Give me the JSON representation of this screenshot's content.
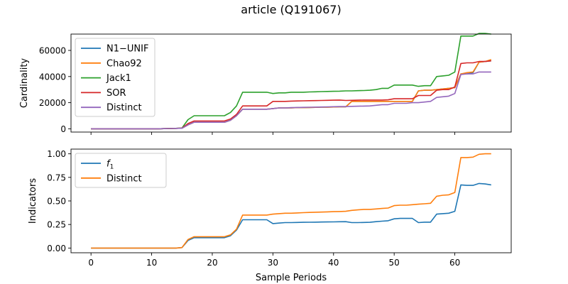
{
  "figure": {
    "title": "article (Q191067)"
  },
  "chart_data": [
    {
      "type": "line",
      "ylabel": "Cardinality",
      "xlabel": "",
      "xlim": [
        -3.3,
        69.3
      ],
      "ylim": [
        -2500,
        72500
      ],
      "xticks": [
        0,
        10,
        20,
        30,
        40,
        50,
        60
      ],
      "yticks": [
        0,
        20000,
        40000,
        60000
      ],
      "yticklabels": [
        "0",
        "20000",
        "40000",
        "60000"
      ],
      "show_xticklabels": false,
      "grid": false,
      "legend": {
        "position": "top-left"
      },
      "x": [
        0,
        1,
        2,
        3,
        4,
        5,
        6,
        7,
        8,
        9,
        10,
        11,
        12,
        13,
        14,
        15,
        16,
        17,
        18,
        19,
        20,
        21,
        22,
        23,
        24,
        25,
        26,
        27,
        28,
        29,
        30,
        31,
        32,
        33,
        34,
        35,
        36,
        37,
        38,
        39,
        40,
        41,
        42,
        43,
        44,
        45,
        46,
        47,
        48,
        49,
        50,
        51,
        52,
        53,
        54,
        55,
        56,
        57,
        58,
        59,
        60,
        61,
        62,
        63,
        64,
        65,
        66
      ],
      "series": [
        {
          "name": "N1−UNIF",
          "color": "#1f77b4",
          "values": [
            0,
            0,
            0,
            0,
            0,
            0,
            0,
            0,
            0,
            0,
            0,
            0,
            100,
            200,
            300,
            500,
            3000,
            5000,
            5000,
            5000,
            5000,
            5000,
            5000,
            6500,
            10000,
            15000,
            15000,
            15000,
            15000,
            15000,
            15500,
            16000,
            16000,
            16000,
            16200,
            16200,
            16300,
            16400,
            16500,
            16600,
            16700,
            16800,
            16800,
            21000,
            21000,
            21000,
            21000,
            21000,
            21000,
            21000,
            21000,
            21000,
            21000,
            21000,
            29000,
            29500,
            29500,
            30000,
            30500,
            31000,
            31500,
            42000,
            42000,
            43000,
            51000,
            51500,
            52000
          ]
        },
        {
          "name": "Chao92",
          "color": "#ff7f0e",
          "values": [
            0,
            0,
            0,
            0,
            0,
            0,
            0,
            0,
            0,
            0,
            0,
            0,
            100,
            200,
            300,
            500,
            3000,
            5000,
            5000,
            5000,
            5000,
            5000,
            5000,
            6500,
            10000,
            15000,
            15000,
            15000,
            15000,
            15000,
            15500,
            16000,
            16000,
            16000,
            16200,
            16200,
            16300,
            16400,
            16500,
            16600,
            16700,
            16800,
            16800,
            21000,
            21000,
            21000,
            21000,
            21000,
            21000,
            21000,
            21000,
            21000,
            21000,
            21000,
            29000,
            29500,
            29500,
            30000,
            30500,
            31000,
            31500,
            42000,
            43000,
            43500,
            51000,
            51500,
            53000
          ]
        },
        {
          "name": "Jack1",
          "color": "#2ca02c",
          "values": [
            0,
            0,
            0,
            0,
            0,
            0,
            0,
            0,
            0,
            0,
            0,
            0,
            100,
            200,
            300,
            600,
            7000,
            10000,
            10000,
            10000,
            10000,
            10000,
            10000,
            12500,
            17500,
            28000,
            28000,
            28000,
            28000,
            28000,
            27000,
            27500,
            27500,
            28000,
            28000,
            28000,
            28200,
            28300,
            28500,
            28600,
            28700,
            28800,
            29000,
            29000,
            29200,
            29300,
            29500,
            30000,
            31000,
            31000,
            33500,
            33500,
            33500,
            33500,
            32500,
            33000,
            33000,
            40000,
            40500,
            41000,
            43500,
            71000,
            71000,
            71000,
            73000,
            73000,
            72500
          ]
        },
        {
          "name": "SOR",
          "color": "#d62728",
          "values": [
            0,
            0,
            0,
            0,
            0,
            0,
            0,
            0,
            0,
            0,
            0,
            0,
            100,
            200,
            300,
            500,
            4000,
            6000,
            6000,
            6000,
            6000,
            6000,
            6000,
            7500,
            11000,
            17500,
            17500,
            17500,
            17500,
            17500,
            21000,
            21000,
            21000,
            21200,
            21300,
            21400,
            21500,
            21600,
            21700,
            21800,
            21900,
            22000,
            21700,
            21800,
            21900,
            22000,
            22000,
            22000,
            22000,
            22200,
            23000,
            23000,
            23000,
            23000,
            25500,
            25500,
            25500,
            29500,
            30000,
            30000,
            32000,
            50000,
            50500,
            50500,
            51500,
            51500,
            52000
          ]
        },
        {
          "name": "Distinct",
          "color": "#9467bd",
          "values": [
            0,
            0,
            0,
            0,
            0,
            0,
            0,
            0,
            0,
            0,
            0,
            0,
            100,
            200,
            300,
            400,
            3000,
            5000,
            5000,
            5000,
            5000,
            5000,
            5000,
            6500,
            10000,
            15000,
            15000,
            15000,
            15000,
            15000,
            15500,
            16000,
            16000,
            16200,
            16300,
            16400,
            16500,
            16600,
            16700,
            16800,
            16900,
            17000,
            17000,
            17200,
            17300,
            17400,
            17500,
            18000,
            18500,
            18500,
            19500,
            19500,
            19500,
            20000,
            20000,
            20500,
            21000,
            24000,
            24500,
            25000,
            27000,
            41500,
            42000,
            42000,
            43500,
            43500,
            43500
          ]
        }
      ]
    },
    {
      "type": "line",
      "ylabel": "Indicators",
      "xlabel": "Sample Periods",
      "xlim": [
        -3.3,
        69.3
      ],
      "ylim": [
        -0.05,
        1.05
      ],
      "xticks": [
        0,
        10,
        20,
        30,
        40,
        50,
        60
      ],
      "yticks": [
        0,
        0.25,
        0.5,
        0.75,
        1.0
      ],
      "yticklabels": [
        "0.00",
        "0.25",
        "0.50",
        "0.75",
        "1.00"
      ],
      "show_xticklabels": true,
      "grid": false,
      "legend": {
        "position": "top-left"
      },
      "x": [
        0,
        1,
        2,
        3,
        4,
        5,
        6,
        7,
        8,
        9,
        10,
        11,
        12,
        13,
        14,
        15,
        16,
        17,
        18,
        19,
        20,
        21,
        22,
        23,
        24,
        25,
        26,
        27,
        28,
        29,
        30,
        31,
        32,
        33,
        34,
        35,
        36,
        37,
        38,
        39,
        40,
        41,
        42,
        43,
        44,
        45,
        46,
        47,
        48,
        49,
        50,
        51,
        52,
        53,
        54,
        55,
        56,
        57,
        58,
        59,
        60,
        61,
        62,
        63,
        64,
        65,
        66
      ],
      "series": [
        {
          "name": "f1",
          "color": "#1f77b4",
          "values": [
            0,
            0,
            0,
            0,
            0,
            0,
            0,
            0,
            0,
            0,
            0,
            0,
            0,
            0,
            0,
            0.005,
            0.08,
            0.11,
            0.11,
            0.11,
            0.11,
            0.11,
            0.11,
            0.13,
            0.19,
            0.3,
            0.3,
            0.3,
            0.3,
            0.3,
            0.26,
            0.265,
            0.27,
            0.27,
            0.272,
            0.273,
            0.274,
            0.275,
            0.276,
            0.277,
            0.278,
            0.279,
            0.28,
            0.27,
            0.27,
            0.272,
            0.273,
            0.28,
            0.285,
            0.29,
            0.31,
            0.315,
            0.315,
            0.315,
            0.27,
            0.275,
            0.275,
            0.36,
            0.365,
            0.37,
            0.39,
            0.67,
            0.665,
            0.665,
            0.685,
            0.68,
            0.67
          ]
        },
        {
          "name": "Distinct",
          "color": "#ff7f0e",
          "values": [
            0,
            0,
            0,
            0,
            0,
            0,
            0,
            0,
            0,
            0,
            0,
            0,
            0,
            0,
            0,
            0.005,
            0.09,
            0.12,
            0.12,
            0.12,
            0.12,
            0.12,
            0.12,
            0.14,
            0.2,
            0.35,
            0.35,
            0.35,
            0.35,
            0.35,
            0.36,
            0.365,
            0.37,
            0.37,
            0.373,
            0.376,
            0.378,
            0.38,
            0.382,
            0.384,
            0.386,
            0.388,
            0.39,
            0.4,
            0.405,
            0.41,
            0.41,
            0.415,
            0.42,
            0.425,
            0.45,
            0.455,
            0.455,
            0.46,
            0.465,
            0.47,
            0.475,
            0.55,
            0.56,
            0.565,
            0.59,
            0.96,
            0.96,
            0.965,
            0.995,
            1.0,
            1.0
          ]
        }
      ]
    }
  ]
}
